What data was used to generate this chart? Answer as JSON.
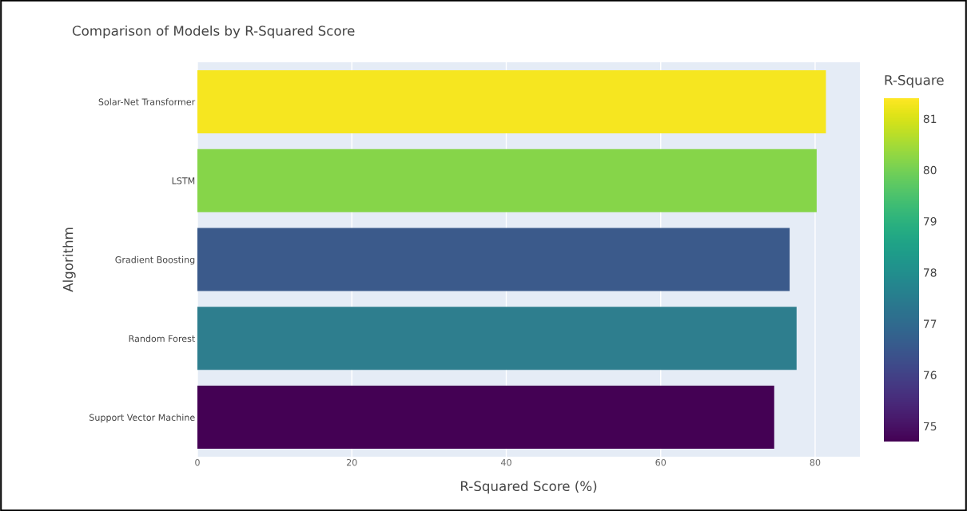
{
  "chart_data": {
    "type": "bar",
    "orientation": "horizontal",
    "title": "Comparison of Models by R-Squared Score",
    "xlabel": "R-Squared Score (%)",
    "ylabel": "Algorithm",
    "categories": [
      "Solar-Net Transformer",
      "LSTM",
      "Gradient Boosting",
      "Random Forest",
      "Support Vector Machine"
    ],
    "values": [
      81.4,
      80.2,
      76.7,
      77.6,
      74.7
    ],
    "colors": [
      "#f6e620",
      "#86d549",
      "#3b5a8b",
      "#2e7e8e",
      "#440154"
    ],
    "xlim": [
      0,
      85.8
    ],
    "xticks": [
      0,
      20,
      40,
      60,
      80
    ],
    "grid": "x",
    "clabel": "R-Square",
    "clim": [
      74.7,
      81.4
    ],
    "cticks": [
      75,
      76,
      77,
      78,
      79,
      80,
      81
    ]
  }
}
